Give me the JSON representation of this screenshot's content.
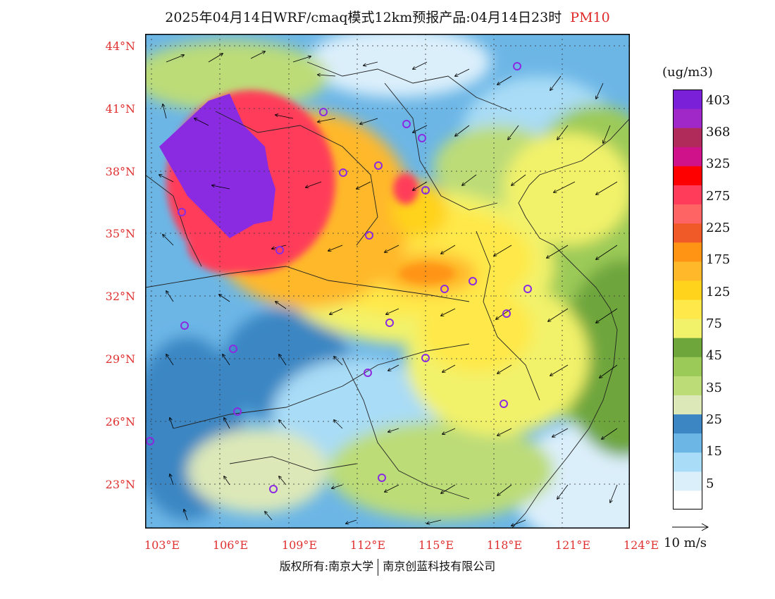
{
  "title": {
    "main": "2025年04月14日WRF/cmaq模式12km预报产品:04月14日23时",
    "variable": "PM10"
  },
  "lat_labels": [
    "44°N",
    "41°N",
    "38°N",
    "35°N",
    "32°N",
    "29°N",
    "26°N",
    "23°N"
  ],
  "lon_labels": [
    "103°E",
    "106°E",
    "109°E",
    "112°E",
    "115°E",
    "118°E",
    "121°E",
    "124°E"
  ],
  "colorbar": {
    "unit": "(ug/m3)",
    "colors": [
      "#ffffff",
      "#dbeffb",
      "#a9dcf6",
      "#6cb6e6",
      "#3b86c3",
      "#dce8b8",
      "#bcdc78",
      "#9cca58",
      "#6ea63c",
      "#f2f26a",
      "#ffe84a",
      "#ffd21c",
      "#ffb82a",
      "#ff9414",
      "#f05a28",
      "#ff6464",
      "#ff3c5a",
      "#ff0000",
      "#d0128a",
      "#b02a5a",
      "#a028c8",
      "#7a20d8"
    ],
    "labels": [
      "5",
      "15",
      "25",
      "35",
      "45",
      "75",
      "125",
      "175",
      "225",
      "275",
      "325",
      "368",
      "403"
    ]
  },
  "vector_ref": {
    "label": "10 m/s"
  },
  "footer": {
    "left": "版权所有:南京大学",
    "right": "南京创蓝科技有限公司"
  },
  "map": {
    "description_colors": {
      "background_low": "#6cb6e6",
      "mid": "#ffe84a",
      "high": "#ff3c5a",
      "extreme": "#8a2be2"
    }
  }
}
